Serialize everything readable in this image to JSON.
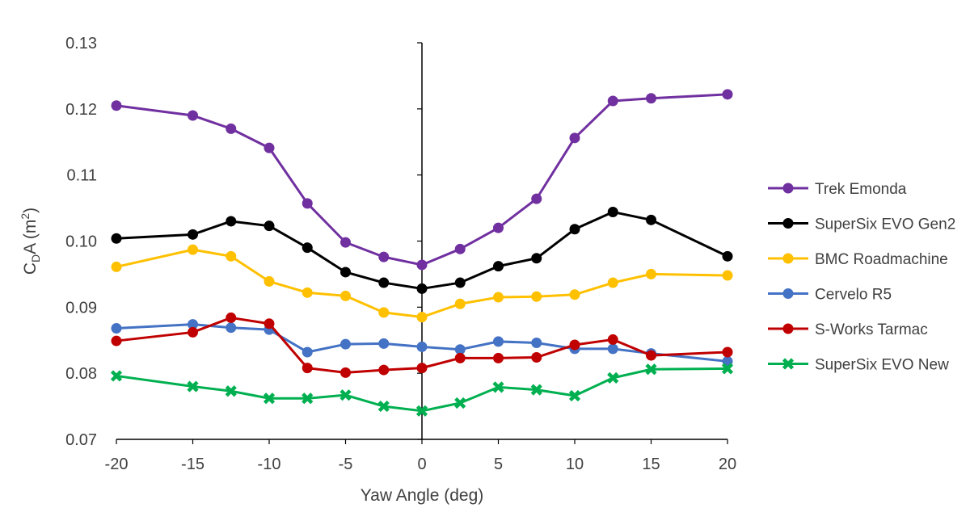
{
  "chart_data": {
    "type": "line",
    "title": "",
    "xlabel": "Yaw Angle (deg)",
    "ylabel": {
      "main": "C",
      "sub": "D",
      "mid": "A (m",
      "sup": "2",
      "end": ")"
    },
    "x": [
      -20,
      -15,
      -12.5,
      -10,
      -7.5,
      -5,
      -2.5,
      0,
      2.5,
      5,
      7.5,
      10,
      12.5,
      15,
      20
    ],
    "xlim": [
      -20,
      20
    ],
    "ylim": [
      0.07,
      0.13
    ],
    "xticks": [
      -20,
      -15,
      -10,
      -5,
      0,
      5,
      10,
      15,
      20
    ],
    "xtick_labels": [
      "-20",
      "-15",
      "-10",
      "-5",
      "0",
      "5",
      "10",
      "15",
      "20"
    ],
    "yticks": [
      0.07,
      0.08,
      0.09,
      0.1,
      0.11,
      0.12,
      0.13
    ],
    "ytick_labels": [
      "0.07",
      "0.08",
      "0.09",
      "0.10",
      "0.11",
      "0.12",
      "0.13"
    ],
    "grid": false,
    "legend_position": "right",
    "series": [
      {
        "name": "Trek Emonda",
        "color": "#7030A0",
        "marker": "circle",
        "values": [
          0.1205,
          0.119,
          0.117,
          0.1141,
          0.1057,
          0.0998,
          0.0976,
          0.0964,
          0.0988,
          0.102,
          0.1064,
          0.1156,
          0.1212,
          0.1216,
          0.1222
        ]
      },
      {
        "name": "SuperSix EVO Gen2",
        "color": "#000000",
        "marker": "circle",
        "values": [
          0.1004,
          0.101,
          0.103,
          0.1023,
          0.099,
          0.0953,
          0.0937,
          0.0928,
          0.0937,
          0.0962,
          0.0974,
          0.1018,
          0.1044,
          0.1032,
          0.0977
        ]
      },
      {
        "name": "BMC Roadmachine",
        "color": "#FFC000",
        "marker": "circle",
        "values": [
          0.0961,
          0.0987,
          0.0977,
          0.0939,
          0.0922,
          0.0917,
          0.0892,
          0.0885,
          0.0905,
          0.0915,
          0.0916,
          0.0919,
          0.0937,
          0.095,
          0.0948
        ]
      },
      {
        "name": "Cervelo R5",
        "color": "#4472C4",
        "marker": "circle",
        "values": [
          0.0868,
          0.0874,
          0.0869,
          0.0866,
          0.0832,
          0.0844,
          0.0845,
          0.084,
          0.0836,
          0.0848,
          0.0846,
          0.0837,
          0.0837,
          0.083,
          0.0818
        ]
      },
      {
        "name": "S-Works Tarmac",
        "color": "#C00000",
        "marker": "circle",
        "values": [
          0.0849,
          0.0862,
          0.0884,
          0.0875,
          0.0808,
          0.0801,
          0.0805,
          0.0808,
          0.0823,
          0.0823,
          0.0824,
          0.0843,
          0.0851,
          0.0827,
          0.0832
        ]
      },
      {
        "name": "SuperSix EVO New",
        "color": "#00B050",
        "marker": "x",
        "values": [
          0.0796,
          0.078,
          0.0773,
          0.0762,
          0.0762,
          0.0767,
          0.075,
          0.0743,
          0.0755,
          0.0779,
          0.0775,
          0.0766,
          0.0793,
          0.0806,
          0.0807
        ]
      }
    ]
  }
}
